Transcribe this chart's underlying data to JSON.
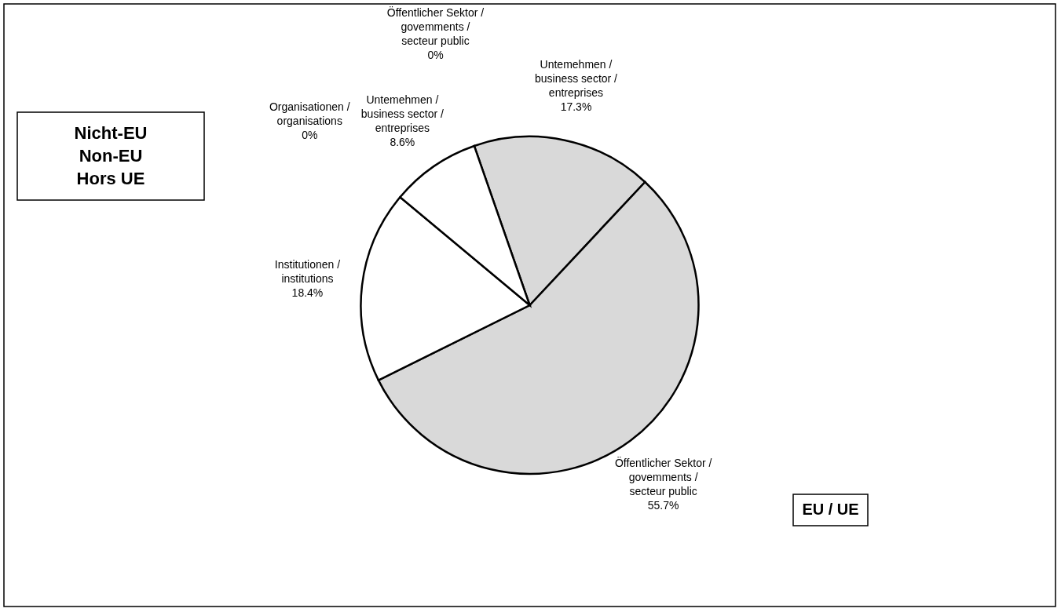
{
  "chart_data": {
    "type": "pie",
    "categories": [
      "Untemehmen / business sector / entreprises",
      "Öffentlicher Sektor / govemments / secteur public",
      "Institutionen / institutions",
      "Organisationen / organisations",
      "Untemehmen / business sector / entreprises",
      "Öffentlicher Sektor / govemments / secteur public"
    ],
    "values": [
      17.3,
      55.7,
      18.4,
      0,
      8.6,
      0
    ],
    "value_labels": [
      "17.3%",
      "55.7%",
      "18.4%",
      "0%",
      "8.6%",
      "0%"
    ],
    "colors": [
      "#d9d9d9",
      "#d9d9d9",
      "#ffffff",
      "#ffffff",
      "#ffffff",
      "#ffffff"
    ],
    "annotations": [
      "Nicht-EU\nNon-EU\nHors UE",
      "EU / UE"
    ]
  }
}
